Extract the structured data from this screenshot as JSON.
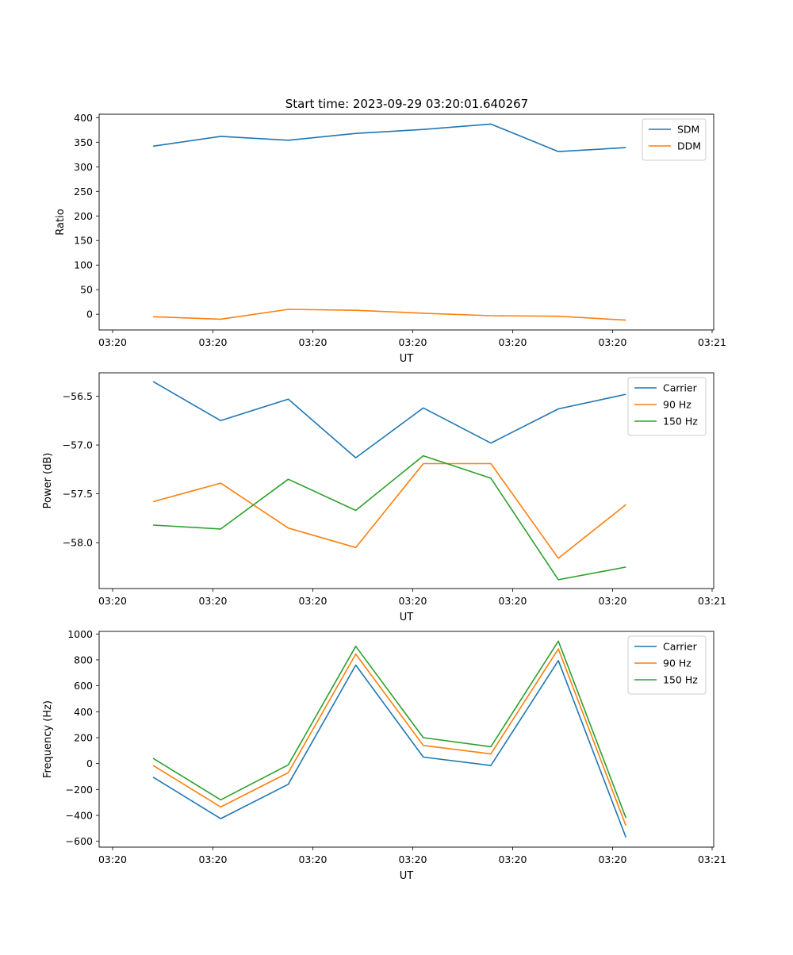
{
  "figure_title": "Start time: 2023-09-29 03:20:01.640267",
  "x_tick_labels": [
    "03:20",
    "03:20",
    "03:20",
    "03:20",
    "03:20",
    "03:20",
    "03:21"
  ],
  "chart_data": [
    {
      "type": "line",
      "title": "Start time: 2023-09-29 03:20:01.640267",
      "xlabel": "UT",
      "ylabel": "Ratio",
      "x": [
        1,
        2,
        3,
        4,
        5,
        6,
        7,
        8
      ],
      "xlim": [
        0.2,
        9.3
      ],
      "ylim": [
        -32,
        407
      ],
      "yticks": [
        0,
        50,
        100,
        150,
        200,
        250,
        300,
        350,
        400
      ],
      "ytick_labels": [
        "0",
        "50",
        "100",
        "150",
        "200",
        "250",
        "300",
        "350",
        "400"
      ],
      "legend_position": "top-right",
      "series": [
        {
          "name": "SDM",
          "color": "#1f77b4",
          "values": [
            342,
            362,
            354,
            368,
            376,
            387,
            331,
            339
          ]
        },
        {
          "name": "DDM",
          "color": "#ff7f0e",
          "values": [
            -5,
            -10,
            10,
            8,
            2,
            -3,
            -4,
            -12
          ]
        }
      ]
    },
    {
      "type": "line",
      "title": "",
      "xlabel": "UT",
      "ylabel": "Power (dB)",
      "x": [
        1,
        2,
        3,
        4,
        5,
        6,
        7,
        8
      ],
      "xlim": [
        0.2,
        9.3
      ],
      "ylim": [
        -58.47,
        -56.26
      ],
      "yticks": [
        -58.0,
        -57.5,
        -57.0,
        -56.5
      ],
      "ytick_labels": [
        "−58.0",
        "−57.5",
        "−57.0",
        "−56.5"
      ],
      "legend_position": "top-right",
      "series": [
        {
          "name": "Carrier",
          "color": "#1f77b4",
          "values": [
            -56.35,
            -56.75,
            -56.53,
            -57.13,
            -56.62,
            -56.98,
            -56.63,
            -56.48
          ]
        },
        {
          "name": "90 Hz",
          "color": "#ff7f0e",
          "values": [
            -57.58,
            -57.39,
            -57.85,
            -58.05,
            -57.19,
            -57.19,
            -58.16,
            -57.61
          ]
        },
        {
          "name": "150 Hz",
          "color": "#2ca02c",
          "values": [
            -57.82,
            -57.86,
            -57.35,
            -57.67,
            -57.11,
            -57.34,
            -58.38,
            -58.25
          ]
        }
      ]
    },
    {
      "type": "line",
      "title": "",
      "xlabel": "UT",
      "ylabel": "Frequency (Hz)",
      "x": [
        1,
        2,
        3,
        4,
        5,
        6,
        7,
        8
      ],
      "xlim": [
        0.2,
        9.3
      ],
      "ylim": [
        -645,
        1020
      ],
      "yticks": [
        -600,
        -400,
        -200,
        0,
        200,
        400,
        600,
        800,
        1000
      ],
      "ytick_labels": [
        "−600",
        "−400",
        "−200",
        "0",
        "200",
        "400",
        "600",
        "800",
        "1000"
      ],
      "legend_position": "top-right",
      "series": [
        {
          "name": "Carrier",
          "color": "#1f77b4",
          "values": [
            -105,
            -425,
            -160,
            760,
            50,
            -15,
            795,
            -570
          ]
        },
        {
          "name": "90 Hz",
          "color": "#ff7f0e",
          "values": [
            -15,
            -335,
            -70,
            845,
            140,
            75,
            885,
            -480
          ]
        },
        {
          "name": "150 Hz",
          "color": "#2ca02c",
          "values": [
            40,
            -280,
            -10,
            905,
            200,
            130,
            945,
            -420
          ]
        }
      ]
    }
  ]
}
